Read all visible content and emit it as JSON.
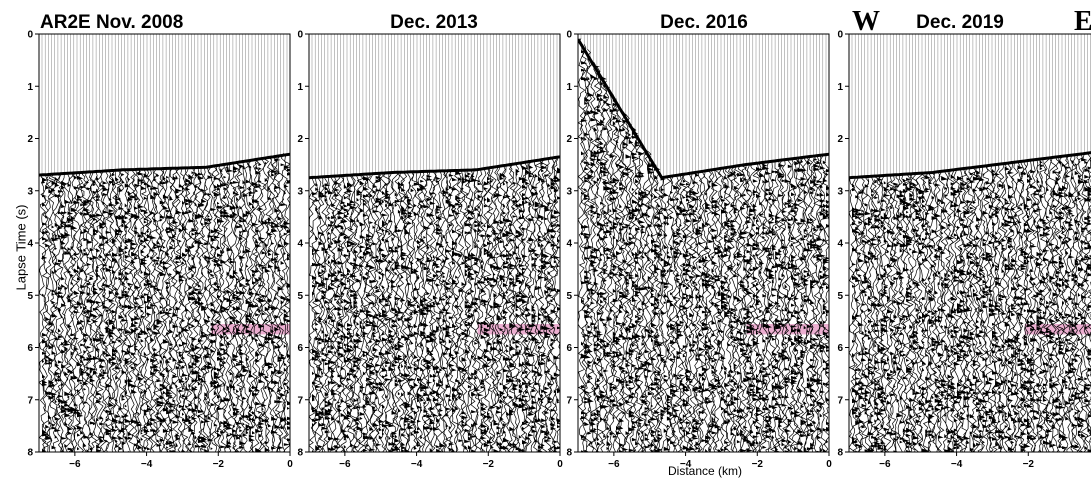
{
  "figure": {
    "ylabel": "Lapse Time (s)",
    "xlabel": "Distance (km)",
    "west_label": "W",
    "east_label": "E"
  },
  "chart_data": [
    {
      "type": "heatmap",
      "title": "AR2E Nov. 2008",
      "xlim": [
        -7,
        0
      ],
      "ylim": [
        0,
        8
      ],
      "y_inverted": true,
      "xticks": [
        -6,
        -4,
        -2,
        0
      ],
      "yticks": [
        0,
        1,
        2,
        3,
        4,
        5,
        6,
        7,
        8
      ],
      "first_arrival_s": [
        2.7,
        2.6,
        2.55,
        2.3
      ],
      "highlight": {
        "x": [
          -2.2,
          0
        ],
        "y": [
          5.55,
          5.75
        ],
        "color": "#e8a0c8"
      },
      "seed": 11
    },
    {
      "type": "heatmap",
      "title": "Dec. 2013",
      "xlim": [
        -7,
        0
      ],
      "ylim": [
        0,
        8
      ],
      "y_inverted": true,
      "xticks": [
        -6,
        -4,
        -2,
        0
      ],
      "yticks": [
        0,
        1,
        2,
        3,
        4,
        5,
        6,
        7,
        8
      ],
      "first_arrival_s": [
        2.75,
        2.65,
        2.6,
        2.35
      ],
      "highlight": {
        "x": [
          -2.3,
          0
        ],
        "y": [
          5.55,
          5.75
        ],
        "color": "#e8a0c8"
      },
      "seed": 23
    },
    {
      "type": "heatmap",
      "title": "Dec. 2016",
      "xlim": [
        -7,
        0
      ],
      "ylim": [
        0,
        8
      ],
      "y_inverted": true,
      "xticks": [
        -6,
        -4,
        -2,
        0
      ],
      "yticks": [
        0,
        1,
        2,
        3,
        4,
        5,
        6,
        7,
        8
      ],
      "first_arrival_s": [
        0.1,
        2.75,
        2.5,
        2.3
      ],
      "highlight": {
        "x": [
          -2.3,
          0
        ],
        "y": [
          5.55,
          5.75
        ],
        "color": "#e8a0c8"
      },
      "seed": 37
    },
    {
      "type": "heatmap",
      "title": "Dec. 2019",
      "xlim": [
        -7,
        0
      ],
      "ylim": [
        0,
        8
      ],
      "y_inverted": true,
      "xticks": [
        -6,
        -4,
        -2
      ],
      "yticks": [
        0,
        1,
        2,
        3,
        4,
        5,
        6,
        7,
        8
      ],
      "first_arrival_s": [
        2.75,
        2.65,
        2.45,
        2.25
      ],
      "highlight": {
        "x": [
          -2.1,
          0
        ],
        "y": [
          5.55,
          5.75
        ],
        "color": "#e8a0c8"
      },
      "seed": 53
    }
  ],
  "colors": {
    "ink": "#000000",
    "trace": "#000000",
    "highlight": "#e8a0c8"
  }
}
